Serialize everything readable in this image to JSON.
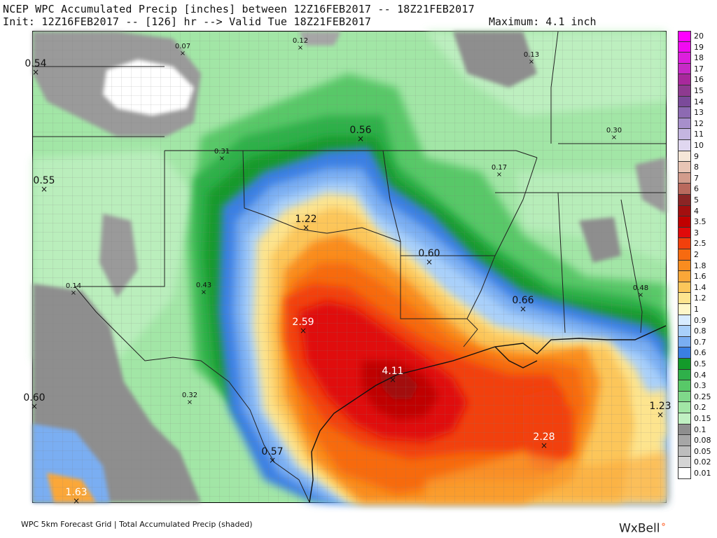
{
  "header": {
    "line1": "NCEP WPC Accumulated Precip [inches] between 12Z16FEB2017 -- 18Z21FEB2017",
    "line2": "Init: 12Z16FEB2017 -- [126] hr --> Valid Tue 18Z21FEB2017",
    "maximum": "Maximum: 4.1 inch"
  },
  "footer": {
    "source": "WPC 5km Forecast Grid | Total Accumulated Precip (shaded)",
    "brand": "WxBell"
  },
  "legend": [
    {
      "label": "20",
      "color": "#ff00ff"
    },
    {
      "label": "19",
      "color": "#f20af2"
    },
    {
      "label": "18",
      "color": "#dd1fdd"
    },
    {
      "label": "17",
      "color": "#c72ac7"
    },
    {
      "label": "16",
      "color": "#a8289c"
    },
    {
      "label": "15",
      "color": "#8e3a90"
    },
    {
      "label": "14",
      "color": "#7b4a9a"
    },
    {
      "label": "13",
      "color": "#8d6ab2"
    },
    {
      "label": "12",
      "color": "#a78fcb"
    },
    {
      "label": "11",
      "color": "#c4b5e0"
    },
    {
      "label": "10",
      "color": "#e0d7f0"
    },
    {
      "label": "9",
      "color": "#f5e6d8"
    },
    {
      "label": "8",
      "color": "#e8c5b5"
    },
    {
      "label": "7",
      "color": "#d29c8c"
    },
    {
      "label": "6",
      "color": "#b9695d"
    },
    {
      "label": "5",
      "color": "#8b2525"
    },
    {
      "label": "4",
      "color": "#a30f0f"
    },
    {
      "label": "3.5",
      "color": "#c00000"
    },
    {
      "label": "3",
      "color": "#e00a0a"
    },
    {
      "label": "2.5",
      "color": "#f2400c"
    },
    {
      "label": "2",
      "color": "#f76a10"
    },
    {
      "label": "1.8",
      "color": "#fa8c1f"
    },
    {
      "label": "1.6",
      "color": "#fba738"
    },
    {
      "label": "1.4",
      "color": "#fcc65a"
    },
    {
      "label": "1.2",
      "color": "#fde48e"
    },
    {
      "label": "1",
      "color": "#fff7c8"
    },
    {
      "label": "0.9",
      "color": "#d8ecff"
    },
    {
      "label": "0.8",
      "color": "#a9d0fa"
    },
    {
      "label": "0.7",
      "color": "#7aaef2"
    },
    {
      "label": "0.6",
      "color": "#3a7fe3"
    },
    {
      "label": "0.5",
      "color": "#139a2a"
    },
    {
      "label": "0.4",
      "color": "#2fb04a"
    },
    {
      "label": "0.3",
      "color": "#58c868"
    },
    {
      "label": "0.25",
      "color": "#7fd88a"
    },
    {
      "label": "0.2",
      "color": "#a2e6a6"
    },
    {
      "label": "0.15",
      "color": "#c0f0c2"
    },
    {
      "label": "0.1",
      "color": "#8e8e8e"
    },
    {
      "label": "0.08",
      "color": "#a6a6a6"
    },
    {
      "label": "0.05",
      "color": "#bdbdbd"
    },
    {
      "label": "0.02",
      "color": "#d4d4d4"
    },
    {
      "label": "0.01",
      "color": "#ffffff"
    }
  ],
  "points": [
    {
      "label": "0.54"
    },
    {
      "label": "0.07"
    },
    {
      "label": "0.12"
    },
    {
      "label": "0.13"
    },
    {
      "label": "0.30"
    },
    {
      "label": "0.56"
    },
    {
      "label": "0.31"
    },
    {
      "label": "0.55"
    },
    {
      "label": "0.17"
    },
    {
      "label": "1.22"
    },
    {
      "label": "0.60"
    },
    {
      "label": "0.14"
    },
    {
      "label": "0.43"
    },
    {
      "label": "0.66"
    },
    {
      "label": "0.48"
    },
    {
      "label": "2.59"
    },
    {
      "label": "4.11"
    },
    {
      "label": "0.32"
    },
    {
      "label": "0.60"
    },
    {
      "label": "1.23"
    },
    {
      "label": "2.28"
    },
    {
      "label": "0.57"
    },
    {
      "label": "1.63"
    }
  ]
}
